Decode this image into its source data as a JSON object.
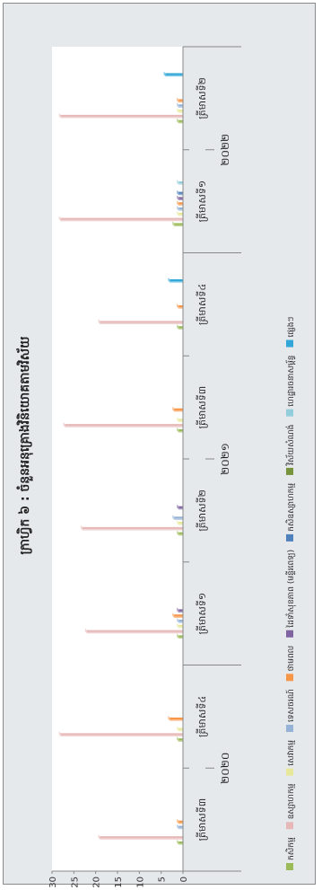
{
  "chart_data": {
    "type": "bar",
    "orientation": "rotated-90",
    "title": "ក្រាហ្វិក ៦ : ចំនួនអនុគ្រោងវិនិយោគតាមវិស័យ",
    "ylim": [
      0,
      30
    ],
    "yticks": [
      "0",
      "5",
      "10",
      "15",
      "20",
      "25",
      "30"
    ],
    "grid": false,
    "legend_position": "right",
    "categories": [
      "ត្រីមាសទី៣",
      "ត្រីមាសទី៤",
      "ត្រីមាសទី១",
      "ត្រីមាសទី២",
      "ត្រីមាសទី៣",
      "ត្រីមាសទី៤",
      "ត្រីមាសទី១",
      "ត្រីមាសទី២"
    ],
    "year_groups": [
      {
        "label": "២០២០",
        "start": 0,
        "end": 1
      },
      {
        "label": "២០២១",
        "start": 2,
        "end": 5
      },
      {
        "label": "២០២២",
        "start": 6,
        "end": 7
      }
    ],
    "series": [
      {
        "name": "កសិកម្ម",
        "color": "#9bbb59",
        "values": [
          1,
          1,
          1,
          1,
          1,
          1,
          2,
          1
        ]
      },
      {
        "name": "ឧស្សាហកម្ម",
        "color": "#e6b9b8",
        "values": [
          19,
          28,
          22,
          23,
          27,
          19,
          28,
          28
        ]
      },
      {
        "name": "សេវាកម្ម",
        "color": "#e8e89a",
        "values": [
          0,
          1,
          1,
          1,
          1,
          0,
          1,
          1
        ]
      },
      {
        "name": "ទេសចរណ៍",
        "color": "#95b3d7",
        "values": [
          1,
          0,
          1,
          2,
          0,
          0,
          1,
          1
        ]
      },
      {
        "name": "ថាមពល",
        "color": "#f79646",
        "values": [
          1,
          3,
          2,
          0,
          2,
          1,
          1,
          1
        ]
      },
      {
        "name": "ដៃទាំសុខភាព (មន្ទីរពេទ្យ)",
        "color": "#8064a2",
        "values": [
          0,
          0,
          1,
          1,
          0,
          0,
          1,
          0
        ]
      },
      {
        "name": "កសិឧស្សាហកម្ម",
        "color": "#4f81bd",
        "values": [
          0,
          0,
          0,
          0,
          0,
          0,
          1,
          0
        ]
      },
      {
        "name": "វិស័យសំណង់",
        "color": "#77933c",
        "values": [
          0,
          0,
          0,
          0,
          0,
          0,
          0,
          0
        ]
      },
      {
        "name": "ហេដ្ឋារចនាសម្ព័ន្ធ",
        "color": "#92cddc",
        "values": [
          0,
          0,
          0,
          0,
          0,
          0,
          1,
          0
        ]
      },
      {
        "name": "ផ្សេងៗ",
        "color": "#31a6d8",
        "values": [
          0,
          0,
          0,
          0,
          0,
          3,
          0,
          4
        ]
      }
    ]
  }
}
